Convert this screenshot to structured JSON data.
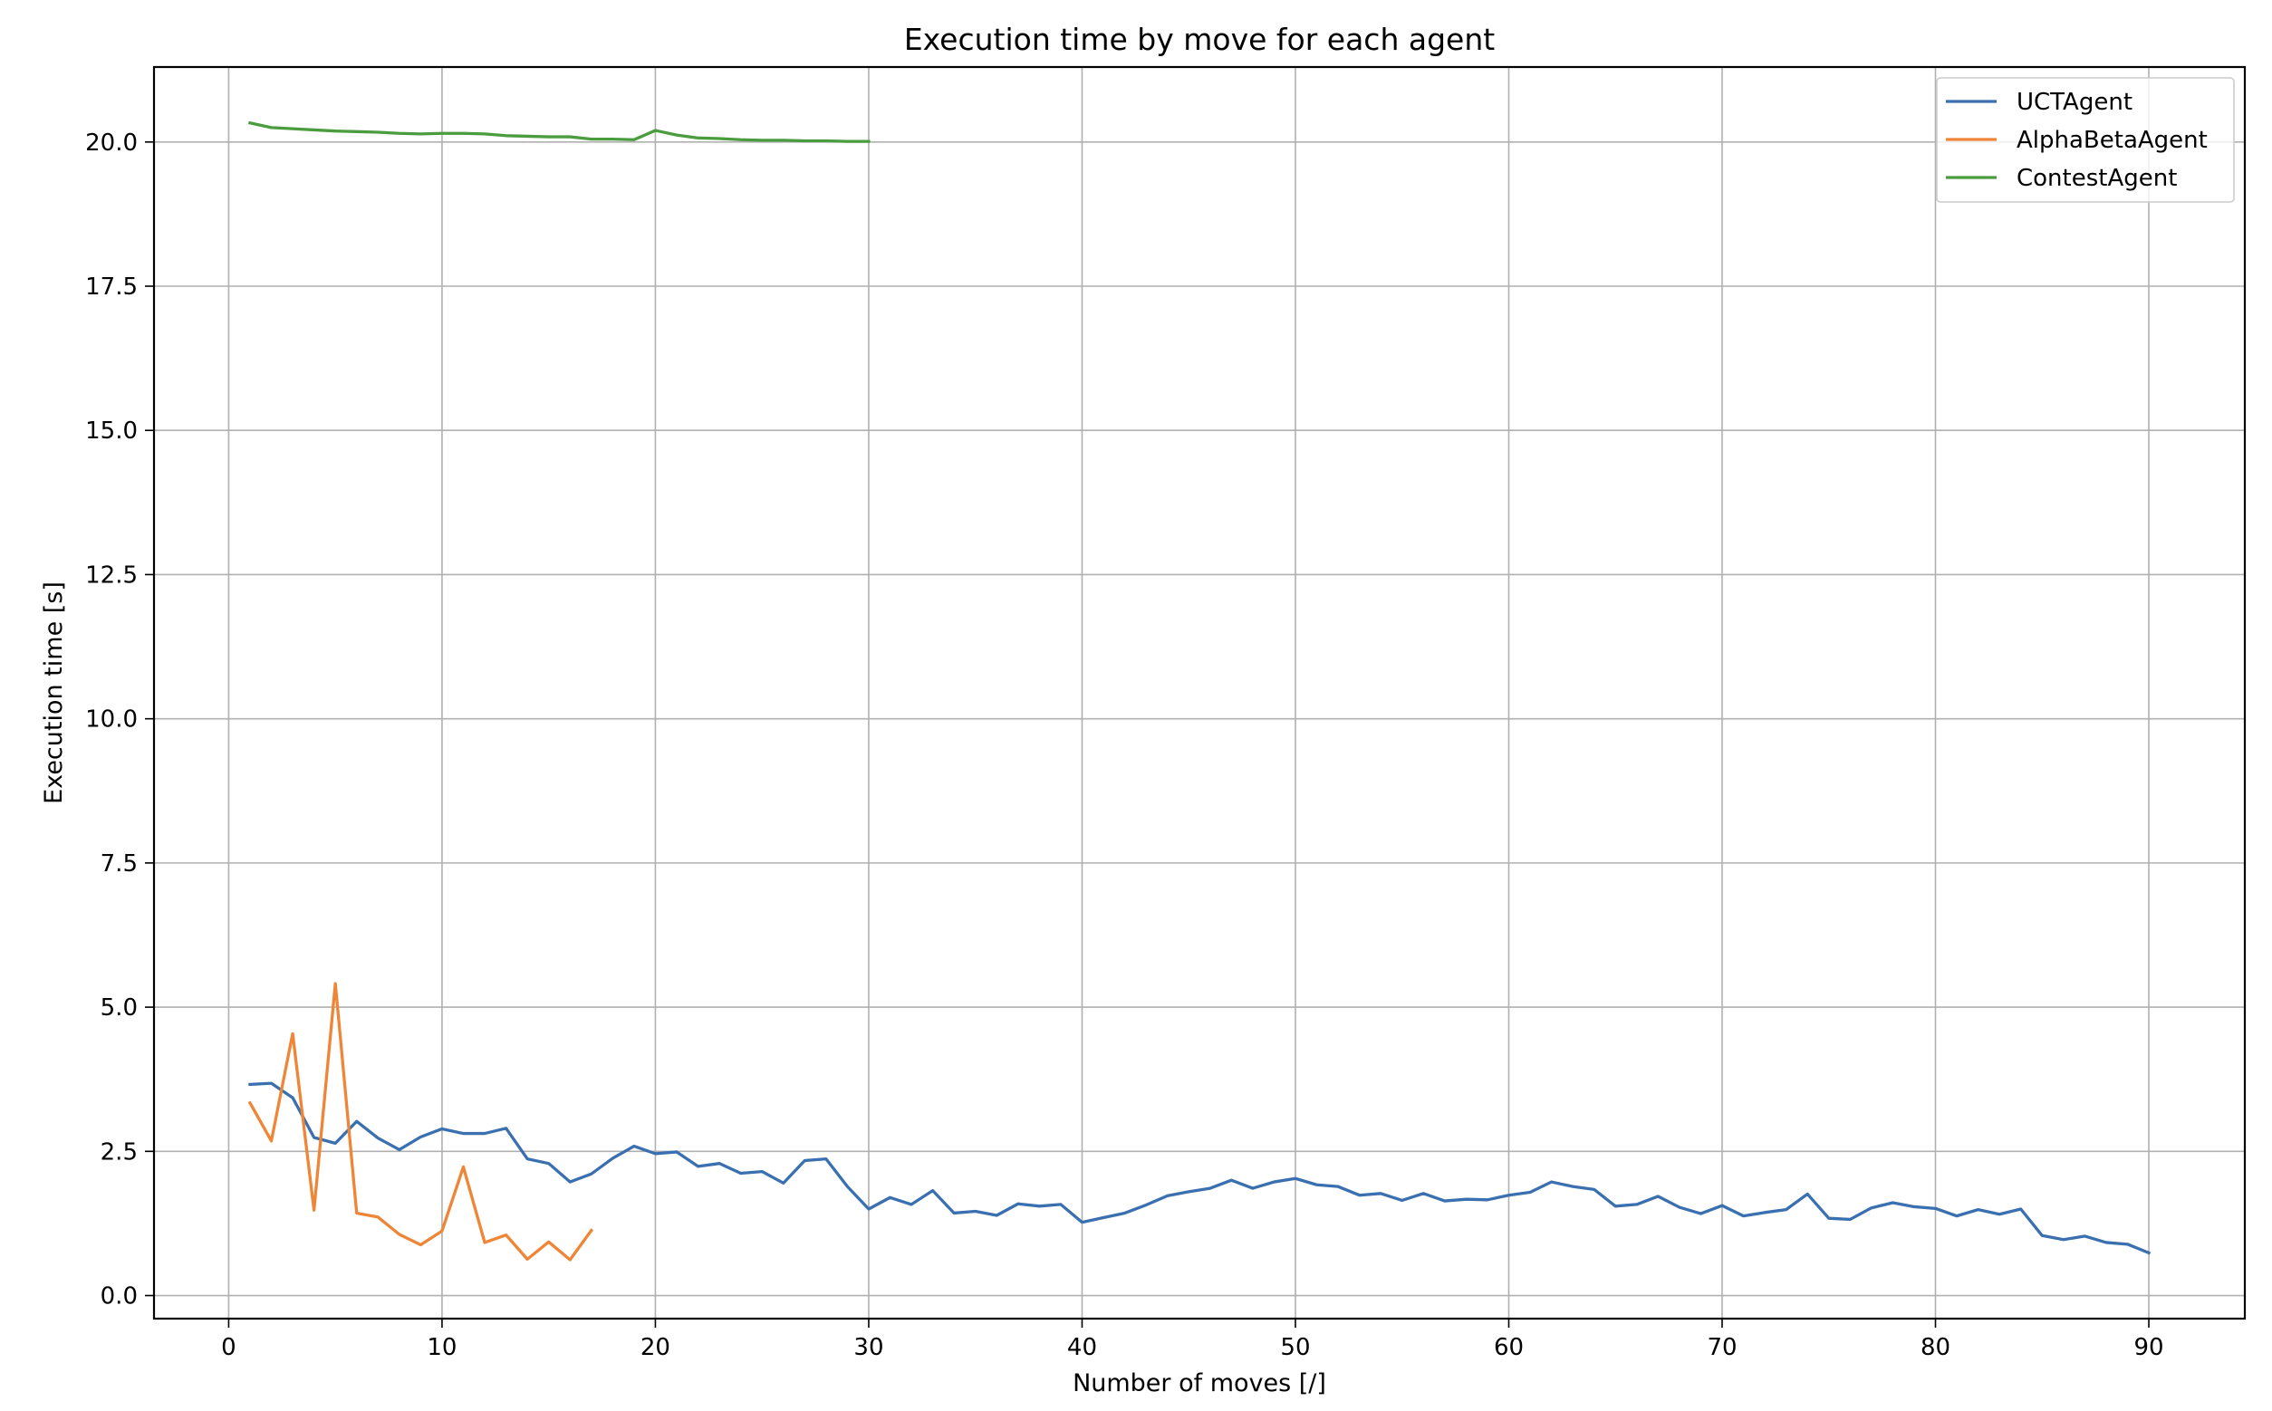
{
  "chart_data": {
    "type": "line",
    "title": "Execution time by move for each agent",
    "xlabel": "Number of moves [/]",
    "ylabel": "Execution time [s]",
    "xlim": [
      -3.5,
      94.5
    ],
    "ylim": [
      -0.4,
      21.3
    ],
    "xticks": [
      0,
      10,
      20,
      30,
      40,
      50,
      60,
      70,
      80,
      90
    ],
    "xtick_labels": [
      "0",
      "10",
      "20",
      "30",
      "40",
      "50",
      "60",
      "70",
      "80",
      "90"
    ],
    "yticks": [
      0,
      2.5,
      5,
      7.5,
      10,
      12.5,
      15,
      17.5,
      20
    ],
    "ytick_labels": [
      "0.0",
      "2.5",
      "5.0",
      "7.5",
      "10.0",
      "12.5",
      "15.0",
      "17.5",
      "20.0"
    ],
    "grid": true,
    "legend_position": "top-right",
    "series": [
      {
        "name": "UCTAgent",
        "color": "#3a70b0",
        "x": [
          1,
          2,
          3,
          4,
          5,
          6,
          7,
          8,
          9,
          10,
          11,
          12,
          13,
          14,
          15,
          16,
          17,
          18,
          19,
          20,
          21,
          22,
          23,
          24,
          25,
          26,
          27,
          28,
          29,
          30,
          31,
          32,
          33,
          34,
          35,
          36,
          37,
          38,
          39,
          40,
          41,
          42,
          43,
          44,
          45,
          46,
          47,
          48,
          49,
          50,
          51,
          52,
          53,
          54,
          55,
          56,
          57,
          58,
          59,
          60,
          61,
          62,
          63,
          64,
          65,
          66,
          67,
          68,
          69,
          70,
          71,
          72,
          73,
          74,
          75,
          76,
          77,
          78,
          79,
          80,
          81,
          82,
          83,
          84,
          85,
          86,
          87,
          88,
          89,
          90
        ],
        "values": [
          3.66,
          3.68,
          3.43,
          2.74,
          2.64,
          3.02,
          2.73,
          2.53,
          2.75,
          2.89,
          2.81,
          2.81,
          2.9,
          2.37,
          2.29,
          1.97,
          2.11,
          2.38,
          2.59,
          2.46,
          2.49,
          2.24,
          2.29,
          2.12,
          2.15,
          1.95,
          2.34,
          2.37,
          1.89,
          1.5,
          1.7,
          1.58,
          1.82,
          1.43,
          1.46,
          1.39,
          1.59,
          1.55,
          1.58,
          1.27,
          1.35,
          1.43,
          1.57,
          1.73,
          1.8,
          1.86,
          2.0,
          1.86,
          1.97,
          2.03,
          1.92,
          1.89,
          1.74,
          1.77,
          1.65,
          1.77,
          1.64,
          1.67,
          1.66,
          1.74,
          1.79,
          1.97,
          1.89,
          1.84,
          1.55,
          1.58,
          1.72,
          1.53,
          1.42,
          1.56,
          1.38,
          1.44,
          1.49,
          1.76,
          1.34,
          1.32,
          1.52,
          1.61,
          1.54,
          1.51,
          1.38,
          1.49,
          1.41,
          1.5,
          1.04,
          0.97,
          1.03,
          0.92,
          0.89,
          0.74
        ]
      },
      {
        "name": "AlphaBetaAgent",
        "color": "#ef8536",
        "x": [
          1,
          2,
          3,
          4,
          5,
          6,
          7,
          8,
          9,
          10,
          11,
          12,
          13,
          14,
          15,
          16,
          17
        ],
        "values": [
          3.34,
          2.68,
          4.54,
          1.48,
          5.41,
          1.43,
          1.36,
          1.06,
          0.88,
          1.12,
          2.23,
          0.92,
          1.05,
          0.63,
          0.93,
          0.62,
          1.13
        ]
      },
      {
        "name": "ContestAgent",
        "color": "#4a9c3f",
        "x": [
          1,
          2,
          3,
          4,
          5,
          6,
          7,
          8,
          9,
          10,
          11,
          12,
          13,
          14,
          15,
          16,
          17,
          18,
          19,
          20,
          21,
          22,
          23,
          24,
          25,
          26,
          27,
          28,
          29,
          30
        ],
        "values": [
          20.33,
          20.25,
          20.23,
          20.21,
          20.19,
          20.18,
          20.17,
          20.15,
          20.14,
          20.15,
          20.15,
          20.14,
          20.11,
          20.1,
          20.09,
          20.09,
          20.05,
          20.05,
          20.04,
          20.2,
          20.12,
          20.07,
          20.06,
          20.04,
          20.03,
          20.03,
          20.02,
          20.02,
          20.01,
          20.01
        ]
      }
    ]
  }
}
